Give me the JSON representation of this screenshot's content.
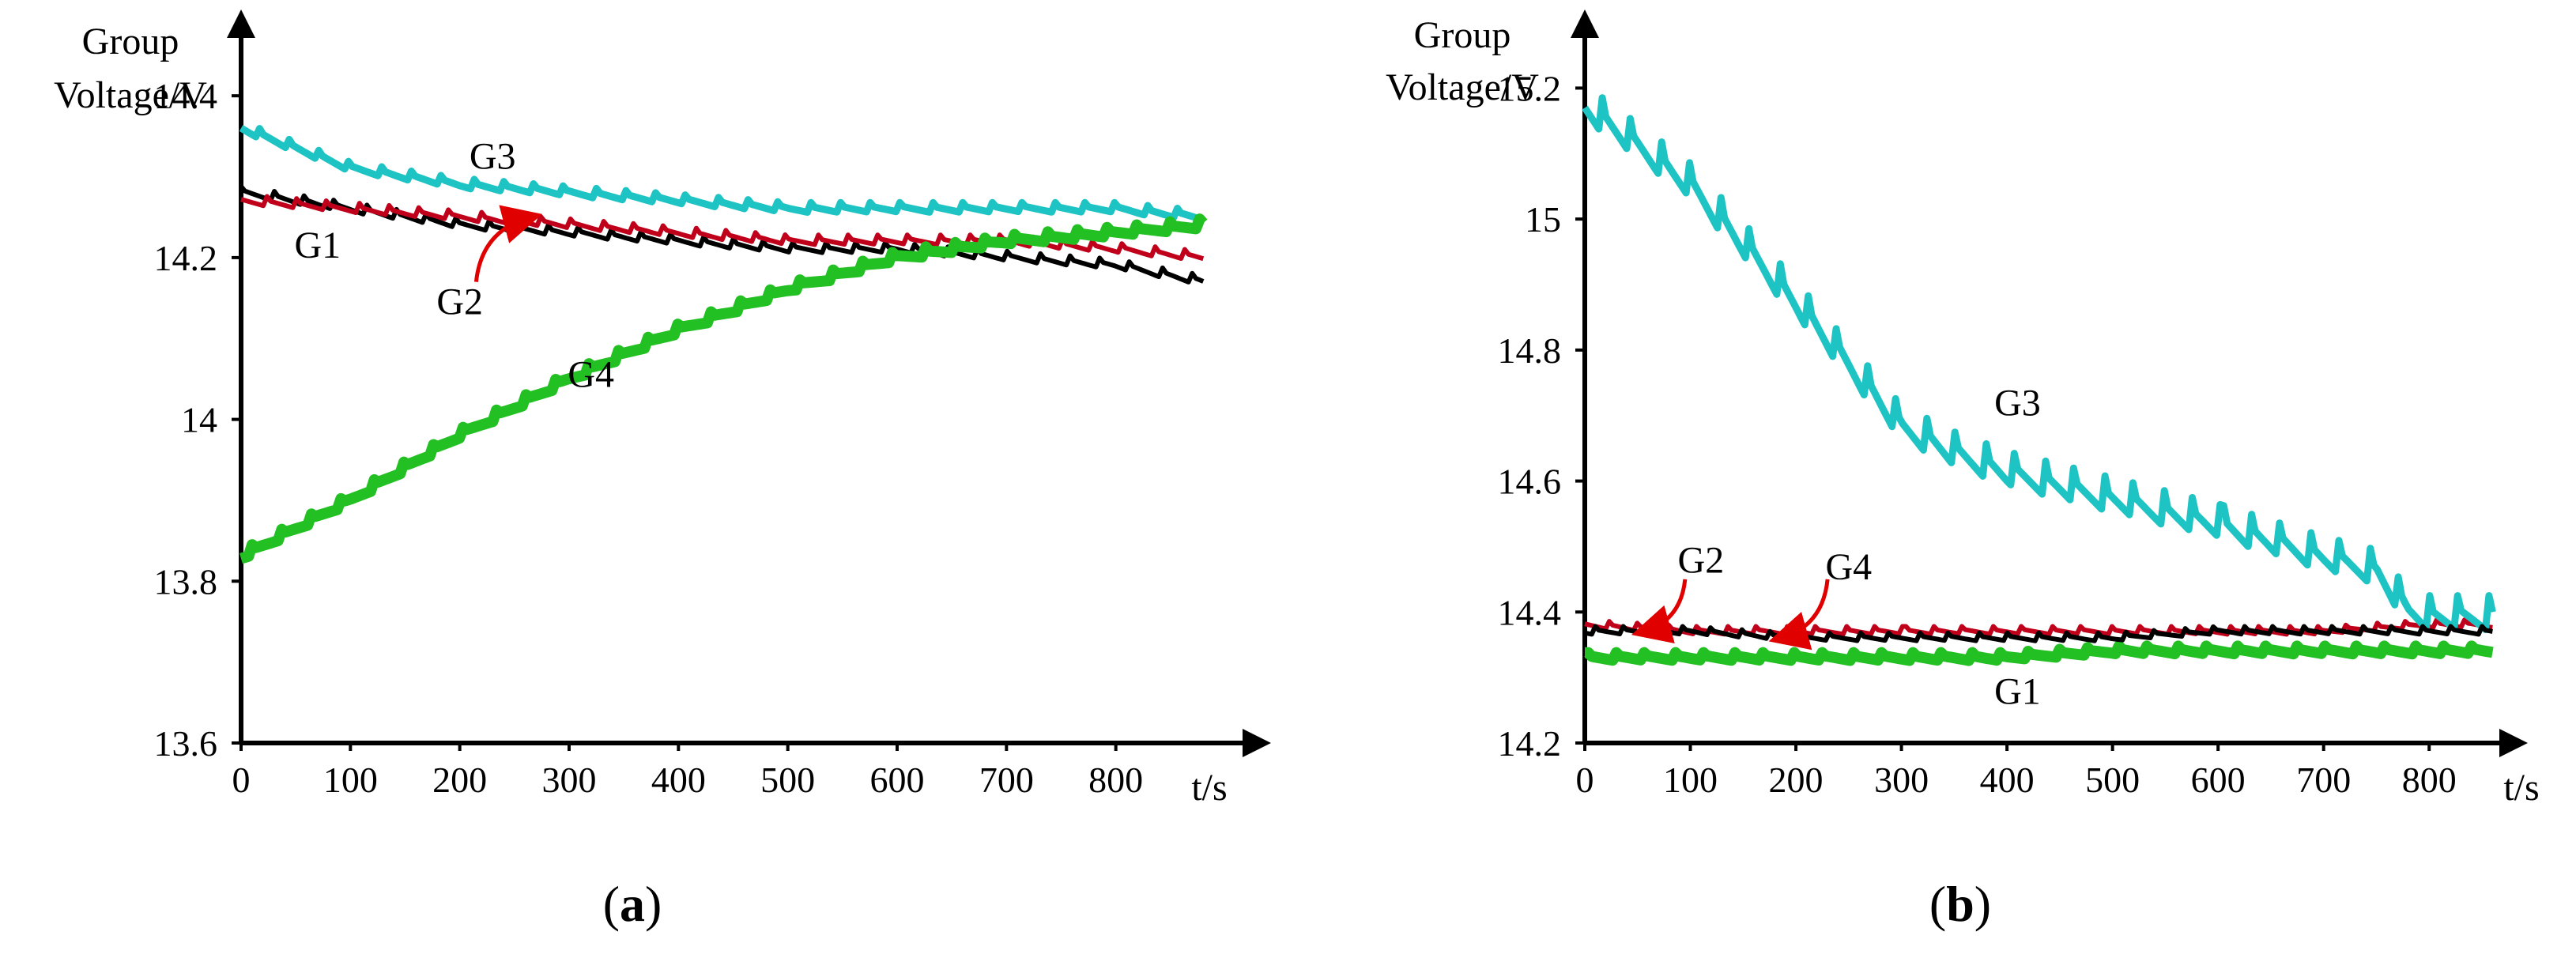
{
  "chart_data": [
    {
      "panel": "a",
      "type": "line",
      "ylabel": [
        "Group",
        "Voltage/V"
      ],
      "xlabel": "t/s",
      "xlim": [
        0,
        900
      ],
      "ylim": [
        13.6,
        14.45
      ],
      "xticks": [
        0,
        100,
        200,
        300,
        400,
        500,
        600,
        700,
        800
      ],
      "yticks": [
        13.6,
        13.8,
        14,
        14.2,
        14.4
      ],
      "ytick_labels": [
        "13.6",
        "13.8",
        "14",
        "14.2",
        "14.4"
      ],
      "caption": {
        "open": "(",
        "letter": "a",
        "close": ")"
      },
      "series": [
        {
          "name": "G1",
          "color": "#000000",
          "x": [
            0,
            100,
            200,
            300,
            400,
            500,
            600,
            700,
            800,
            880
          ],
          "y": [
            14.28,
            14.26,
            14.24,
            14.23,
            14.22,
            14.21,
            14.21,
            14.2,
            14.19,
            14.17
          ]
        },
        {
          "name": "G2",
          "color": "#c0001a",
          "x": [
            0,
            100,
            200,
            300,
            400,
            500,
            600,
            700,
            800,
            880
          ],
          "y": [
            14.27,
            14.26,
            14.25,
            14.24,
            14.23,
            14.22,
            14.22,
            14.22,
            14.21,
            14.2
          ]
        },
        {
          "name": "G3",
          "color": "#1ec4c4",
          "x": [
            0,
            100,
            200,
            300,
            400,
            500,
            600,
            700,
            800,
            880
          ],
          "y": [
            14.36,
            14.31,
            14.29,
            14.28,
            14.27,
            14.26,
            14.26,
            14.26,
            14.26,
            14.25
          ]
        },
        {
          "name": "G4",
          "color": "#22c022",
          "x": [
            0,
            100,
            200,
            300,
            400,
            500,
            600,
            700,
            800,
            880
          ],
          "y": [
            13.83,
            13.9,
            13.98,
            14.05,
            14.11,
            14.16,
            14.2,
            14.22,
            14.23,
            14.24
          ]
        }
      ],
      "annotations": [
        {
          "text": "G1",
          "x": 70,
          "y": 14.2
        },
        {
          "text": "G2",
          "x": 200,
          "y": 14.13
        },
        {
          "text": "G3",
          "x": 230,
          "y": 14.31
        },
        {
          "text": "G4",
          "x": 320,
          "y": 14.04
        }
      ],
      "arrows": [
        {
          "from_x": 215,
          "from_y": 14.17,
          "to_x": 265,
          "to_y": 14.25,
          "color": "#e00000"
        }
      ]
    },
    {
      "panel": "b",
      "type": "line",
      "ylabel": [
        "Group",
        "Voltage/V"
      ],
      "xlabel": "t/s",
      "xlim": [
        0,
        850
      ],
      "ylim": [
        14.2,
        15.25
      ],
      "xticks": [
        0,
        100,
        200,
        300,
        400,
        500,
        600,
        700,
        800
      ],
      "yticks": [
        14.2,
        14.4,
        14.6,
        14.8,
        15,
        15.2
      ],
      "ytick_labels": [
        "14.2",
        "14.4",
        "14.6",
        "14.8",
        "15",
        "15.2"
      ],
      "caption": {
        "open": "(",
        "letter": "b",
        "close": ")"
      },
      "series": [
        {
          "name": "G1",
          "color": "#22c022",
          "x": [
            0,
            100,
            200,
            300,
            400,
            500,
            600,
            700,
            800,
            860
          ],
          "y": [
            14.33,
            14.33,
            14.33,
            14.33,
            14.33,
            14.34,
            14.34,
            14.34,
            14.34,
            14.34
          ]
        },
        {
          "name": "G2",
          "color": "#c0001a",
          "x": [
            0,
            100,
            200,
            300,
            400,
            500,
            600,
            700,
            800,
            860
          ],
          "y": [
            14.38,
            14.37,
            14.37,
            14.37,
            14.37,
            14.37,
            14.37,
            14.37,
            14.38,
            14.38
          ]
        },
        {
          "name": "G3",
          "color": "#1ec4c4",
          "x": [
            0,
            100,
            200,
            300,
            350,
            400,
            500,
            600,
            700,
            750,
            780,
            800,
            860
          ],
          "y": [
            15.17,
            15.05,
            14.87,
            14.68,
            14.64,
            14.61,
            14.57,
            14.53,
            14.48,
            14.46,
            14.4,
            14.39,
            14.39
          ]
        },
        {
          "name": "G4",
          "color": "#000000",
          "x": [
            0,
            100,
            200,
            300,
            400,
            500,
            600,
            700,
            800,
            860
          ],
          "y": [
            14.37,
            14.37,
            14.36,
            14.36,
            14.36,
            14.36,
            14.37,
            14.37,
            14.37,
            14.37
          ]
        }
      ],
      "annotations": [
        {
          "text": "G1",
          "x": 410,
          "y": 14.26
        },
        {
          "text": "G2",
          "x": 110,
          "y": 14.46
        },
        {
          "text": "G3",
          "x": 410,
          "y": 14.7
        },
        {
          "text": "G4",
          "x": 250,
          "y": 14.45
        }
      ],
      "arrows": [
        {
          "from_x": 95,
          "from_y": 14.45,
          "to_x": 55,
          "to_y": 14.37,
          "color": "#e00000"
        },
        {
          "from_x": 230,
          "from_y": 14.45,
          "to_x": 185,
          "to_y": 14.36,
          "color": "#e00000"
        }
      ]
    }
  ]
}
